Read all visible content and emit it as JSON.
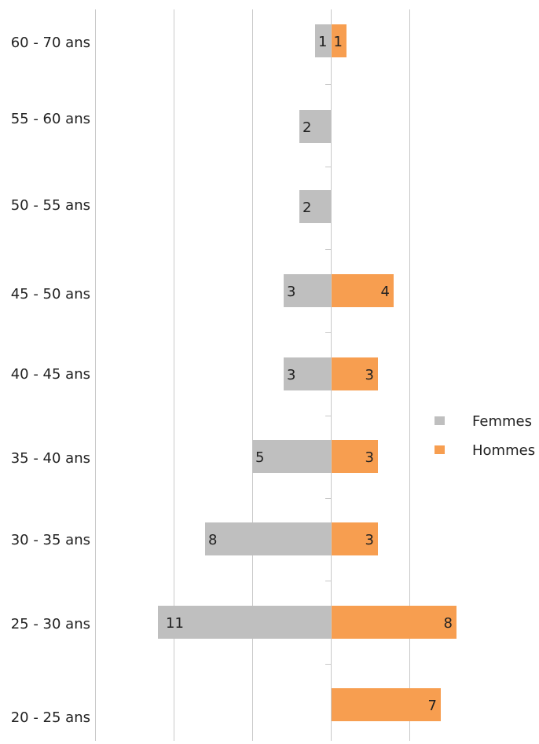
{
  "chart_data": {
    "type": "bar",
    "orientation": "horizontal-pyramid",
    "categories": [
      "60 - 70 ans",
      "55 - 60 ans",
      "50 - 55 ans",
      "45 - 50 ans",
      "40 - 45 ans",
      "35 - 40 ans",
      "30 - 35 ans",
      "25 - 30 ans",
      "20 - 25 ans"
    ],
    "series": [
      {
        "name": "Femmes",
        "color": "#bfbfbf",
        "values": [
          1,
          2,
          2,
          3,
          3,
          5,
          8,
          11,
          null
        ],
        "labels": [
          "1",
          "2",
          "2",
          "3",
          "3",
          "5",
          "8",
          "11",
          ""
        ]
      },
      {
        "name": "Hommes",
        "color": "#f79e50",
        "values": [
          1,
          null,
          null,
          4,
          3,
          3,
          3,
          8,
          7
        ],
        "labels": [
          "1",
          "",
          "",
          "4",
          "3",
          "3",
          "3",
          "8",
          "7"
        ]
      }
    ],
    "xlim": [
      -15,
      5
    ],
    "grid": true,
    "legend": "right"
  }
}
